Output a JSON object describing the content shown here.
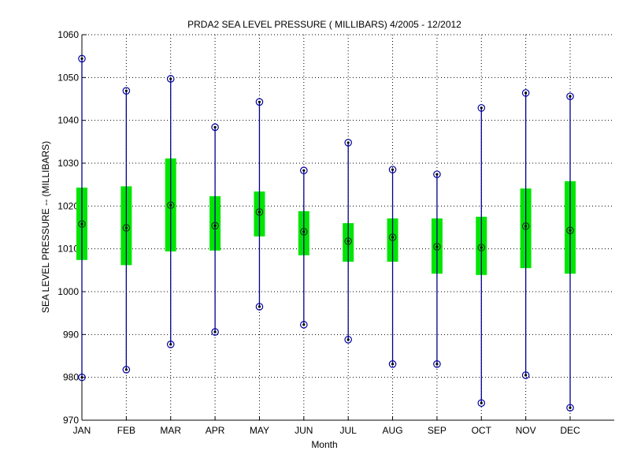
{
  "chart_data": {
    "type": "boxplot",
    "title": "PRDA2  SEA LEVEL PRESSURE ( MILLIBARS) 4/2005 - 12/2012",
    "xlabel": "Month",
    "ylabel": "SEA LEVEL PRESSURE -- (MILLIBARS)",
    "ylim": [
      970,
      1060
    ],
    "yticks": [
      970,
      980,
      990,
      1000,
      1010,
      1020,
      1030,
      1040,
      1050,
      1060
    ],
    "grid": true,
    "categories": [
      "JAN",
      "FEB",
      "MAR",
      "APR",
      "MAY",
      "JUN",
      "JUL",
      "AUG",
      "SEP",
      "OCT",
      "NOV",
      "DEC"
    ],
    "series": [
      {
        "name": "max",
        "values": [
          1054.4,
          1046.9,
          1049.7,
          1038.4,
          1044.3,
          1028.3,
          1034.8,
          1028.5,
          1027.4,
          1042.9,
          1046.4,
          1045.6
        ]
      },
      {
        "name": "box_top",
        "values": [
          1024.3,
          1024.6,
          1031.1,
          1022.3,
          1023.4,
          1018.8,
          1016.0,
          1017.1,
          1017.1,
          1017.5,
          1024.1,
          1025.8
        ]
      },
      {
        "name": "median",
        "values": [
          1015.8,
          1014.9,
          1020.2,
          1015.4,
          1018.6,
          1014.0,
          1011.8,
          1012.7,
          1010.5,
          1010.3,
          1015.3,
          1014.3
        ]
      },
      {
        "name": "box_bottom",
        "values": [
          1007.4,
          1006.2,
          1009.4,
          1009.6,
          1012.9,
          1008.5,
          1007.0,
          1007.0,
          1004.2,
          1003.9,
          1005.5,
          1004.2
        ]
      },
      {
        "name": "min",
        "values": [
          980.0,
          981.8,
          987.7,
          990.6,
          996.5,
          992.3,
          988.8,
          983.1,
          983.1,
          974.0,
          980.5,
          972.9
        ]
      }
    ],
    "colors": {
      "whisker": "#00008b",
      "box": "#00e600",
      "marker_ring": "#0000a0",
      "marker_dot": "#000000",
      "grid": "#000000",
      "axis": "#000000"
    }
  }
}
